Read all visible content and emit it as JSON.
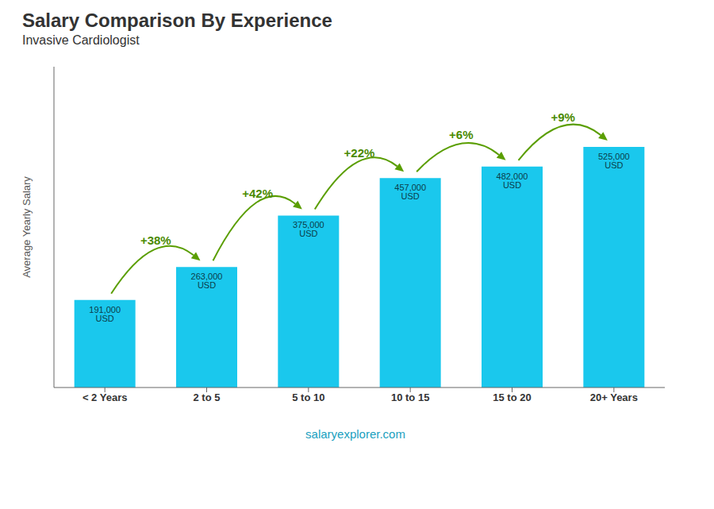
{
  "chart_data": {
    "type": "bar",
    "title": "Salary Comparison By Experience",
    "subtitle": "Invasive Cardiologist",
    "categories": [
      "< 2 Years",
      "2 to 5",
      "5 to 10",
      "10 to 15",
      "15 to 20",
      "20+ Years"
    ],
    "values": [
      191000,
      263000,
      375000,
      457000,
      482000,
      525000
    ],
    "value_labels": [
      "191,000 USD",
      "263,000 USD",
      "375,000 USD",
      "457,000 USD",
      "482,000 USD",
      "525,000 USD"
    ],
    "color": "#1AC8ED",
    "ylim": [
      0,
      700000
    ],
    "ylabel": "Average Yearly Salary",
    "annotations": [
      "+38%",
      "+42%",
      "+22%",
      "+6%",
      "+9%"
    ],
    "footer": "salaryexplorer.com",
    "grid": false,
    "data_labels": true,
    "tick_labels": "x"
  }
}
